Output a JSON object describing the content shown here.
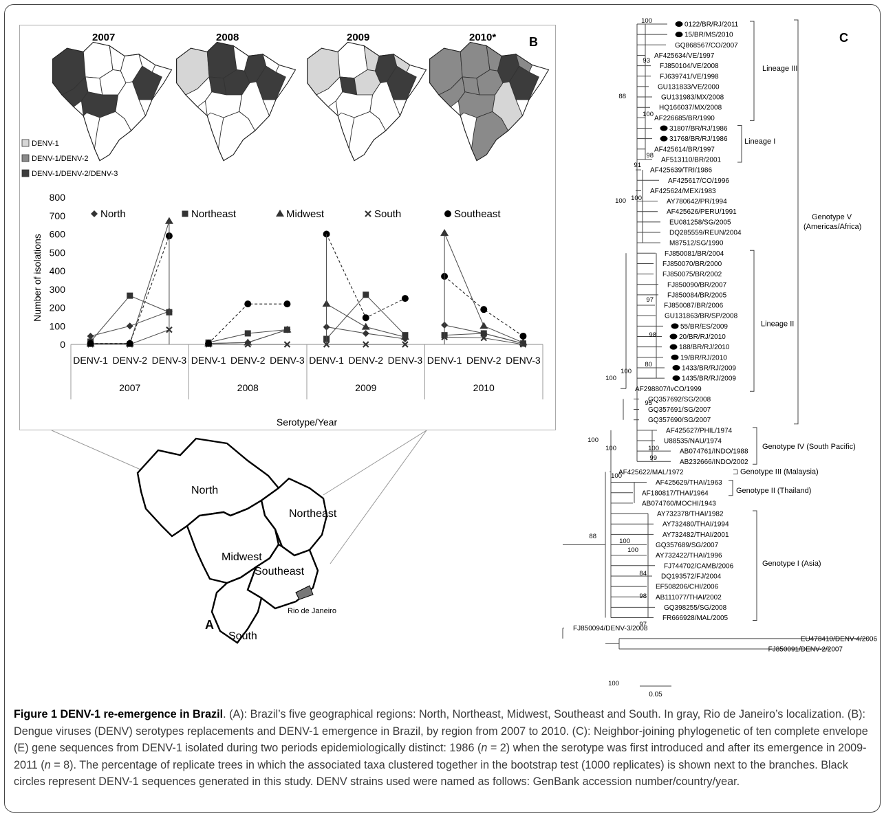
{
  "caption": {
    "label": "Figure 1",
    "title": "DENV-1 re-emergence in Brazil",
    "text_a": ". (A): Brazil’s five geographical regions: North, Northeast, Midwest, Southeast and South. In gray, Rio de Janeiro’s localization. (B): Dengue viruses (DENV) serotypes replacements and DENV-1 emergence in Brazil, by region from 2007 to 2010. (C): Neighbor-joining phylogenetic of ten complete envelope (E) gene sequences from DENV-1 isolated during two periods epidemiologically distinct: 1986 (",
    "n1": "n",
    "text_b": " = 2) when the serotype was first introduced and after its emergence in 2009-2011 (",
    "n2": "n",
    "text_c": " = 8). The percentage of replicate trees in which the associated taxa clustered together in the bootstrap test (1000 replicates) is shown next to the branches. Black circles represent DENV-1 sequences generated in this study. DENV strains used were named as follows: GenBank accession number/country/year."
  },
  "panel_b": {
    "letter": "B",
    "map_years": [
      "2007",
      "2008",
      "2009",
      "2010*"
    ],
    "map_legend": [
      {
        "label": "DENV-1",
        "color": "#d6d6d6"
      },
      {
        "label": "DENV-1/DENV-2",
        "color": "#8a8a8a"
      },
      {
        "label": "DENV-1/DENV-2/DENV-3",
        "color": "#3c3c3c"
      }
    ]
  },
  "panel_a": {
    "letter": "A",
    "regions": [
      "North",
      "Northeast",
      "Midwest",
      "Southeast",
      "South"
    ],
    "city": "Rio de Janeiro"
  },
  "panel_c": {
    "letter": "C",
    "scale": "0.05",
    "taxa": [
      "0122/BR/RJ/2011",
      "15/BR/MS/2010",
      "GQ868567/CO/2007",
      "AF425634/VE/1997",
      "FJ850104/VE/2008",
      "FJ639741/VE/1998",
      "GU131833/VE/2000",
      "GU131983/MX/2008",
      "HQ166037/MX/2008",
      "AF226685/BR/1990",
      "31807/BR/RJ/1986",
      "31768/BR/RJ/1986",
      "AF425614/BR/1997",
      "AF513110/BR/2001",
      "AF425639/TRI/1986",
      "AF425617/CO/1996",
      "AF425624/MEX/1983",
      "AY780642/PR/1994",
      "AF425626/PERU/1991",
      "EU081258/SG/2005",
      "DQ285559/REUN/2004",
      "M87512/SG/1990",
      "FJ850081/BR/2004",
      "FJ850070/BR/2000",
      "FJ850075/BR/2002",
      "FJ850090/BR/2007",
      "FJ850084/BR/2005",
      "FJ850087/BR/2006",
      "GU131863/BR/SP/2008",
      "55/BR/ES/2009",
      "20/BR/RJ/2010",
      "188/BR/RJ/2010",
      "19/BR/RJ/2010",
      "1433/BR/RJ/2009",
      "1435/BR/RJ/2009",
      "AF298807/IvCO/1999",
      "GQ357692/SG/2008",
      "GQ357691/SG/2007",
      "GQ357690/SG/2007",
      "AF425627/PHIL/1974",
      "U88535/NAU/1974",
      "AB074761/INDO/1988",
      "AB232666/INDO/2002",
      "AF425622/MAL/1972",
      "AF425629/THAI/1963",
      "AF180817/THAI/1964",
      "AB074760/MOCHI/1943",
      "AY732378/THAI/1982",
      "AY732480/THAI/1994",
      "AY732482/THAI/2001",
      "GQ357689/SG/2007",
      "AY732422/THAI/1996",
      "FJ744702/CAMB/2006",
      "DQ193572/FJ/2004",
      "EF508206/CHI/2006",
      "AB111077/THAI/2002",
      "GQ398255/SG/2008",
      "FR666928/MAL/2005",
      "FJ850094/DENV-3/2008",
      "EU478410/DENV-4/2006",
      "FJ850091/DENV-2/2007"
    ],
    "bootstrap": [
      "100",
      "93",
      "88",
      "100",
      "98",
      "91",
      "100",
      "100",
      "100",
      "97",
      "98",
      "80",
      "95",
      "100",
      "100",
      "100",
      "99",
      "100",
      "100",
      "88",
      "100",
      "84",
      "98",
      "97",
      "100"
    ],
    "clades": [
      "Lineage III",
      "Lineage I",
      "Lineage II",
      "Genotype V",
      "(Americas/Africa)",
      "Genotype IV (South Pacific)",
      "Genotype III (Malaysia)",
      "Genotype II (Thailand)",
      "Genotype I (Asia)"
    ]
  },
  "chart_data": {
    "type": "line",
    "categories": [
      "DENV-1",
      "DENV-2",
      "DENV-3",
      "DENV-1",
      "DENV-2",
      "DENV-3",
      "DENV-1",
      "DENV-2",
      "DENV-3",
      "DENV-1",
      "DENV-2",
      "DENV-3"
    ],
    "groups": [
      "2007",
      "2008",
      "2009",
      "2010"
    ],
    "xlabel": "Serotype/Year",
    "ylabel": "Number of isolations",
    "ylim": [
      0,
      800
    ],
    "yticks": [
      "0",
      "100",
      "200",
      "300",
      "400",
      "500",
      "600",
      "700",
      "800"
    ],
    "legend_position": "top",
    "series": [
      {
        "name": "North",
        "marker": "diamond",
        "dash": "solid",
        "values": [
          45,
          100,
          180,
          5,
          10,
          80,
          95,
          60,
          30,
          105,
          60,
          5
        ]
      },
      {
        "name": "Northeast",
        "marker": "square",
        "dash": "solid",
        "values": [
          15,
          265,
          175,
          10,
          60,
          80,
          30,
          270,
          50,
          50,
          60,
          5
        ]
      },
      {
        "name": "Midwest",
        "marker": "triangle",
        "dash": "solid",
        "values": [
          5,
          5,
          670,
          5,
          10,
          80,
          220,
          95,
          40,
          605,
          100,
          10
        ]
      },
      {
        "name": "South",
        "marker": "cross",
        "dash": "solid",
        "values": [
          0,
          0,
          80,
          0,
          0,
          0,
          0,
          0,
          0,
          40,
          35,
          0
        ]
      },
      {
        "name": "Southeast",
        "marker": "circle",
        "dash": "dashed",
        "values": [
          5,
          5,
          590,
          5,
          220,
          220,
          600,
          145,
          250,
          370,
          190,
          45
        ]
      }
    ]
  }
}
